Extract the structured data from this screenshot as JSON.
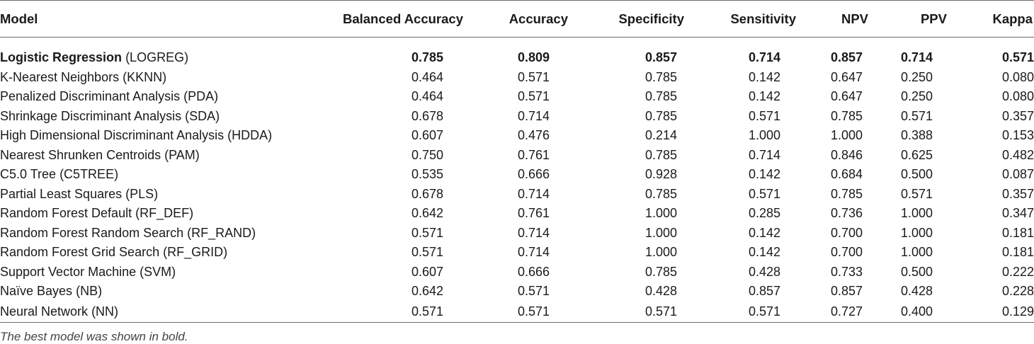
{
  "table": {
    "columns": [
      "Model",
      "Balanced Accuracy",
      "Accuracy",
      "Specificity",
      "Sensitivity",
      "NPV",
      "PPV",
      "Kappa"
    ],
    "rows": [
      {
        "model_name": "Logistic Regression",
        "model_abbr": "(LOGREG)",
        "best": true,
        "values": [
          "0.785",
          "0.809",
          "0.857",
          "0.714",
          "0.857",
          "0.714",
          "0.571"
        ]
      },
      {
        "model_name": "K-Nearest Neighbors",
        "model_abbr": "(KKNN)",
        "best": false,
        "values": [
          "0.464",
          "0.571",
          "0.785",
          "0.142",
          "0.647",
          "0.250",
          "0.080"
        ]
      },
      {
        "model_name": "Penalized Discriminant Analysis",
        "model_abbr": "(PDA)",
        "best": false,
        "values": [
          "0.464",
          "0.571",
          "0.785",
          "0.142",
          "0.647",
          "0.250",
          "0.080"
        ]
      },
      {
        "model_name": "Shrinkage Discriminant Analysis",
        "model_abbr": "(SDA)",
        "best": false,
        "values": [
          "0.678",
          "0.714",
          "0.785",
          "0.571",
          "0.785",
          "0.571",
          "0.357"
        ]
      },
      {
        "model_name": "High Dimensional Discriminant Analysis",
        "model_abbr": "(HDDA)",
        "best": false,
        "values": [
          "0.607",
          "0.476",
          "0.214",
          "1.000",
          "1.000",
          "0.388",
          "0.153"
        ]
      },
      {
        "model_name": "Nearest Shrunken Centroids",
        "model_abbr": "(PAM)",
        "best": false,
        "values": [
          "0.750",
          "0.761",
          "0.785",
          "0.714",
          "0.846",
          "0.625",
          "0.482"
        ]
      },
      {
        "model_name": "C5.0 Tree",
        "model_abbr": "(C5TREE)",
        "best": false,
        "values": [
          "0.535",
          "0.666",
          "0.928",
          "0.142",
          "0.684",
          "0.500",
          "0.087"
        ]
      },
      {
        "model_name": "Partial Least Squares",
        "model_abbr": "(PLS)",
        "best": false,
        "values": [
          "0.678",
          "0.714",
          "0.785",
          "0.571",
          "0.785",
          "0.571",
          "0.357"
        ]
      },
      {
        "model_name": "Random Forest Default",
        "model_abbr": "(RF_DEF)",
        "best": false,
        "values": [
          "0.642",
          "0.761",
          "1.000",
          "0.285",
          "0.736",
          "1.000",
          "0.347"
        ]
      },
      {
        "model_name": "Random Forest Random Search",
        "model_abbr": "(RF_RAND)",
        "best": false,
        "values": [
          "0.571",
          "0.714",
          "1.000",
          "0.142",
          "0.700",
          "1.000",
          "0.181"
        ]
      },
      {
        "model_name": "Random Forest Grid Search",
        "model_abbr": "(RF_GRID)",
        "best": false,
        "values": [
          "0.571",
          "0.714",
          "1.000",
          "0.142",
          "0.700",
          "1.000",
          "0.181"
        ]
      },
      {
        "model_name": "Support Vector Machine",
        "model_abbr": "(SVM)",
        "best": false,
        "values": [
          "0.607",
          "0.666",
          "0.785",
          "0.428",
          "0.733",
          "0.500",
          "0.222"
        ]
      },
      {
        "model_name": "Naïve Bayes",
        "model_abbr": "(NB)",
        "best": false,
        "values": [
          "0.642",
          "0.571",
          "0.428",
          "0.857",
          "0.857",
          "0.428",
          "0.228"
        ]
      },
      {
        "model_name": "Neural Network",
        "model_abbr": "(NN)",
        "best": false,
        "values": [
          "0.571",
          "0.571",
          "0.571",
          "0.571",
          "0.727",
          "0.400",
          "0.129"
        ]
      }
    ]
  },
  "footnote": "The best model was shown in bold."
}
